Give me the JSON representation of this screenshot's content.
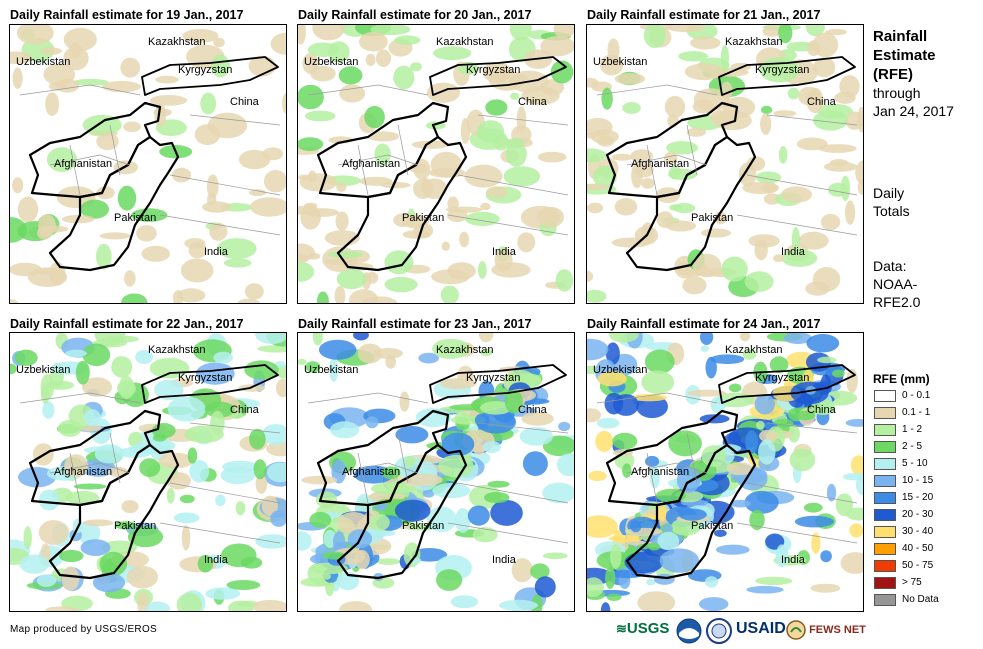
{
  "panels": [
    {
      "title": "Daily Rainfall estimate for 19 Jan., 2017",
      "intensity": 1
    },
    {
      "title": "Daily Rainfall estimate for 20 Jan., 2017",
      "intensity": 2
    },
    {
      "title": "Daily Rainfall estimate for 21 Jan., 2017",
      "intensity": 2
    },
    {
      "title": "Daily Rainfall estimate for 22 Jan., 2017",
      "intensity": 3
    },
    {
      "title": "Daily Rainfall estimate for 23 Jan., 2017",
      "intensity": 5
    },
    {
      "title": "Daily Rainfall estimate for 24 Jan., 2017",
      "intensity": 6
    }
  ],
  "map_labels": {
    "kazakhstan": "Kazakhstan",
    "uzbekistan": "Uzbekistan",
    "kyrgyzstan": "Kyrgyzstan",
    "china": "China",
    "afghanistan": "Afghanistan",
    "pakistan": "Pakistan",
    "india": "India"
  },
  "sidebar": {
    "title_line1": "Rainfall",
    "title_line2": "Estimate",
    "title_line3": "(RFE)",
    "through_label": "through",
    "through_date": "Jan 24, 2017",
    "daily_line1": "Daily",
    "daily_line2": "Totals",
    "data_line1": "Data:",
    "data_line2": "NOAA-",
    "data_line3": "RFE2.0"
  },
  "legend": {
    "title": "RFE (mm)",
    "items": [
      {
        "label": "0 - 0.1",
        "color": "#ffffff"
      },
      {
        "label": "0.1 - 1",
        "color": "#e6d7b1"
      },
      {
        "label": "1 - 2",
        "color": "#b4f0a0"
      },
      {
        "label": "2 - 5",
        "color": "#6bd963"
      },
      {
        "label": "5 - 10",
        "color": "#b4f0f0"
      },
      {
        "label": "10 - 15",
        "color": "#7ab4f0"
      },
      {
        "label": "15 - 20",
        "color": "#3c8ce6"
      },
      {
        "label": "20 - 30",
        "color": "#1e5ad2"
      },
      {
        "label": "30 - 40",
        "color": "#ffe06e"
      },
      {
        "label": "40 - 50",
        "color": "#ffa000"
      },
      {
        "label": "50 - 75",
        "color": "#f03c00"
      },
      {
        "label": "> 75",
        "color": "#a01414"
      },
      {
        "label": "No Data",
        "color": "#969696"
      }
    ]
  },
  "credit": "Map produced by USGS/EROS",
  "logos": {
    "usgs": "USGS",
    "usaid": "USAID",
    "fewsnet": "FEWS NET"
  }
}
